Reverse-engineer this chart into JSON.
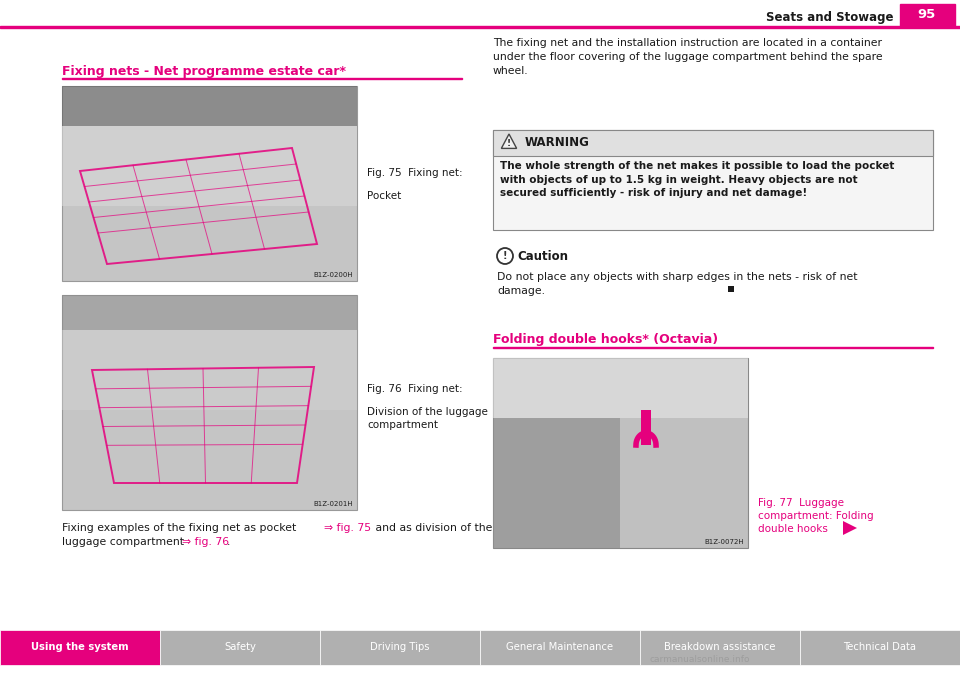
{
  "page_title": "Seats and Stowage",
  "page_number": "95",
  "top_line_color": "#e5007d",
  "header_bg": "#e5007d",
  "section1_title": "Fixing nets - Net programme estate car*",
  "section1_title_color": "#e5007d",
  "section2_title": "Folding double hooks* (Octavia)",
  "section2_title_color": "#e5007d",
  "fig75_caption_line1": "Fig. 75  Fixing net:",
  "fig75_caption_line2": "Pocket",
  "fig76_caption_line1": "Fig. 76  Fixing net:",
  "fig76_caption_line2": "Division of the luggage",
  "fig76_caption_line3": "compartment",
  "fig77_caption_line1": "Fig. 77  Luggage",
  "fig77_caption_line2": "compartment: Folding",
  "fig77_caption_line3": "double hooks",
  "right_text": "The fixing net and the installation instruction are located in a container\nunder the floor covering of the luggage compartment behind the spare\nwheel.",
  "warning_title": "WARNING",
  "warning_text_bold": "The whole strength of the net makes it possible to load the pocket\nwith objects of up to 1.5 kg in weight. Heavy objects are not\nsecured sufficiently - risk of injury and net damage!",
  "caution_title": "Caution",
  "caution_text": "Do not place any objects with sharp edges in the nets - risk of net\ndamage.",
  "body_text_pre": "Fixing examples of the fixing net as pocket ",
  "body_text_fig75": "⇒ fig. 75",
  "body_text_mid": " and as division of the",
  "body_text_line2_pre": "luggage compartment ",
  "body_text_fig76": "⇒ fig. 76",
  "body_text_line2_post": ".",
  "nav_tabs": [
    "Using the system",
    "Safety",
    "Driving Tips",
    "General Maintenance",
    "Breakdown assistance",
    "Technical Data"
  ],
  "nav_active": 0,
  "nav_active_color": "#e5007d",
  "nav_inactive_color": "#b0b0b0",
  "watermark": "carmanualsonline.info",
  "warning_border": "#777777",
  "warning_bg": "#f5f5f5",
  "arrow_color": "#e5007d",
  "page_bg": "#ffffff",
  "img1_label": "B1Z-0200H",
  "img2_label": "B1Z-0201H",
  "img3_label": "B1Z-0072H"
}
